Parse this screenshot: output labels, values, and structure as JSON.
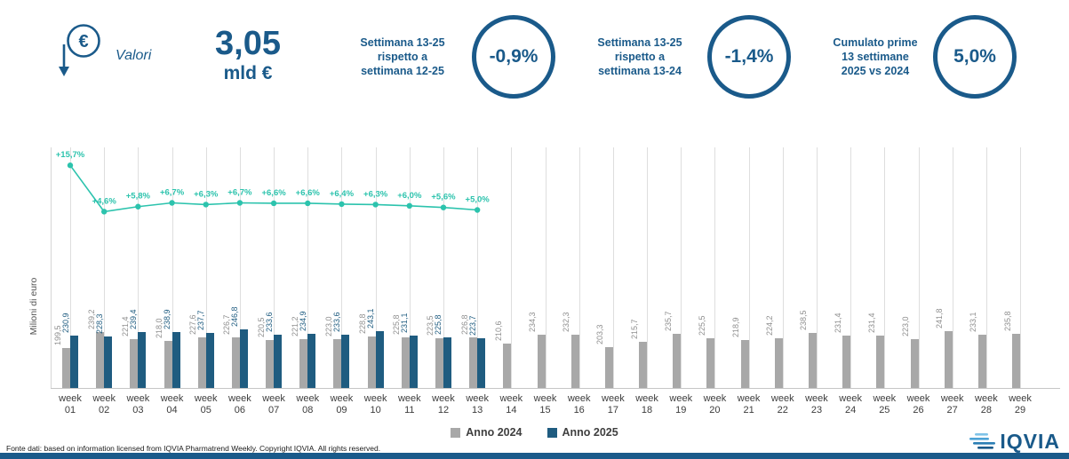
{
  "colors": {
    "brand_blue": "#1a5a8a",
    "bar_2024": "#a8a8a8",
    "bar_2025": "#1f5c80",
    "teal": "#2cc3ad"
  },
  "header": {
    "icon_label": "Valori",
    "headline_value": "3,05",
    "headline_unit": "mld €",
    "kpis": [
      {
        "line1": "Settimana 13-25",
        "line2": "rispetto a",
        "line3": "settimana 12-25",
        "value": "-0,9%"
      },
      {
        "line1": "Settimana 13-25",
        "line2": "rispetto a",
        "line3": "settimana 13-24",
        "value": "-1,4%"
      },
      {
        "line1": "Cumulato prime",
        "line2": "13 settimane",
        "line3": "2025 vs 2024",
        "value": "5,0%"
      }
    ]
  },
  "chart_data": {
    "type": "bar",
    "title": "",
    "ylabel": "Milioni di euro",
    "x_prefix": "week",
    "categories": [
      "01",
      "02",
      "03",
      "04",
      "05",
      "06",
      "07",
      "08",
      "09",
      "10",
      "11",
      "12",
      "13",
      "14",
      "15",
      "16",
      "17",
      "18",
      "19",
      "20",
      "21",
      "22",
      "23",
      "24",
      "25",
      "26",
      "27",
      "28",
      "29"
    ],
    "series": [
      {
        "name": "Anno 2024",
        "values": [
          199.5,
          239.2,
          221.4,
          218.0,
          227.6,
          226.7,
          220.5,
          221.2,
          223.0,
          228.8,
          225.8,
          223.5,
          226.8,
          210.6,
          234.3,
          232.3,
          203.3,
          215.7,
          235.7,
          225.5,
          218.9,
          224.2,
          238.5,
          231.4,
          231.4,
          223.0,
          241.8,
          233.1,
          235.8
        ]
      },
      {
        "name": "Anno 2025",
        "values": [
          230.9,
          228.3,
          239.4,
          238.9,
          237.7,
          246.8,
          233.6,
          234.9,
          233.6,
          243.1,
          231.1,
          225.8,
          223.7
        ]
      }
    ],
    "line": {
      "values": [
        15.7,
        4.6,
        5.8,
        6.7,
        6.3,
        6.7,
        6.6,
        6.6,
        6.4,
        6.3,
        6.0,
        5.6,
        5.0
      ],
      "labels": [
        "+15,7%",
        "+4,6%",
        "+5,8%",
        "+6,7%",
        "+6,3%",
        "+6,7%",
        "+6,6%",
        "+6,6%",
        "+6,4%",
        "+6,3%",
        "+6,0%",
        "+5,6%",
        "+5,0%"
      ]
    },
    "legend_position": "bottom-center",
    "grid": "vertical"
  },
  "footer": {
    "source": "Fonte dati: based on information licensed from IQVIA Pharmatrend Weekly. Copyright IQVIA. All rights reserved.",
    "logo_text": "IQVIA"
  }
}
